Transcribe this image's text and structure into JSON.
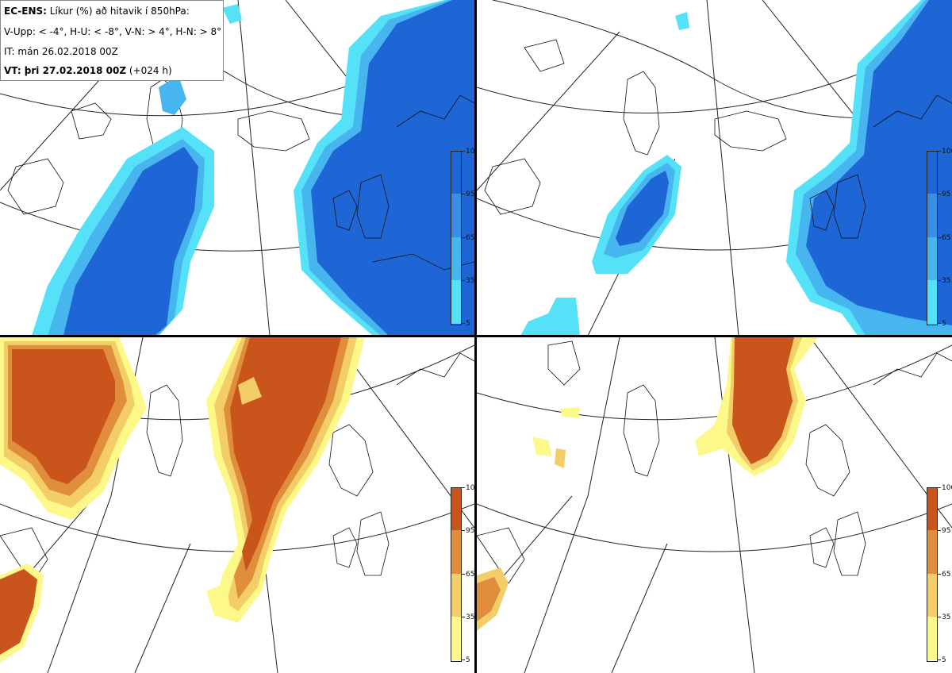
{
  "header": {
    "model": "EC-ENS:",
    "title_rest": "Líkur (%) að hitavik í 850hPa:",
    "thresholds": "V-Upp: < -4°, H-U: < -8°, V-N: > 4°, H-N: > 8°",
    "init_time": "IT: mán 26.02.2018 00Z",
    "valid_label": "VT: þri 27.02.2018 00Z",
    "lead": "(+024 h)"
  },
  "panels": [
    {
      "id": "upper-left",
      "variable": "V-Upp",
      "threshold": "< -4°",
      "color_scheme": "blue"
    },
    {
      "id": "upper-right",
      "variable": "H-U",
      "threshold": "< -8°",
      "color_scheme": "blue"
    },
    {
      "id": "lower-left",
      "variable": "V-N",
      "threshold": "> 4°",
      "color_scheme": "orange"
    },
    {
      "id": "lower-right",
      "variable": "H-N",
      "threshold": "> 8°",
      "color_scheme": "orange"
    }
  ],
  "colorbars": {
    "ticks": [
      "100",
      "95",
      "65",
      "35",
      "5"
    ],
    "blue": [
      "#1e66d6",
      "#3a8ee6",
      "#48b6ee",
      "#55e2f8"
    ],
    "orange": [
      "#c9541c",
      "#e08d3e",
      "#f2cd68",
      "#fdf88a"
    ]
  }
}
